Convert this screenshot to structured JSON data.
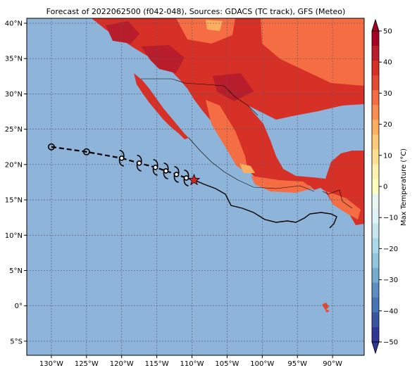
{
  "title": "Forecast of 2022062500 (f042-048), Sources: GDACS (TC track), GFS (Meteo)",
  "axes": {
    "x_ticks": [
      {
        "value": -130,
        "label": "130°W"
      },
      {
        "value": -125,
        "label": "125°W"
      },
      {
        "value": -120,
        "label": "120°W"
      },
      {
        "value": -115,
        "label": "115°W"
      },
      {
        "value": -110,
        "label": "110°W"
      },
      {
        "value": -105,
        "label": "105°W"
      },
      {
        "value": -100,
        "label": "100°W"
      },
      {
        "value": -95,
        "label": "95°W"
      },
      {
        "value": -90,
        "label": "90°W"
      }
    ],
    "y_ticks": [
      {
        "value": 40,
        "label": "40°N"
      },
      {
        "value": 35,
        "label": "35°N"
      },
      {
        "value": 30,
        "label": "30°N"
      },
      {
        "value": 25,
        "label": "25°N"
      },
      {
        "value": 20,
        "label": "20°N"
      },
      {
        "value": 15,
        "label": "15°N"
      },
      {
        "value": 10,
        "label": "10°N"
      },
      {
        "value": 5,
        "label": "5°N"
      },
      {
        "value": 0,
        "label": "0°"
      },
      {
        "value": -5,
        "label": "5°S"
      }
    ],
    "lon_range": [
      -133.5,
      -85.5
    ],
    "lat_range": [
      -7,
      40.7
    ],
    "gridlines": true
  },
  "colorbar": {
    "label": "Max Temperature (°C)",
    "range": [
      -50,
      50
    ],
    "step": 5,
    "tick_values": [
      50,
      40,
      30,
      20,
      10,
      0,
      -10,
      -20,
      -30,
      -40,
      -50
    ],
    "tick_labels": [
      "50",
      "40",
      "30",
      "20",
      "10",
      "0",
      "−10",
      "−20",
      "−30",
      "−40",
      "−50"
    ],
    "colors_top_to_bottom": [
      "#a50026",
      "#b71d2a",
      "#d73027",
      "#e34a33",
      "#f46d43",
      "#f88d52",
      "#fdae61",
      "#fdc978",
      "#fee090",
      "#fff1b0",
      "#ffffbf",
      "#e8f6f3",
      "#e0f3f8",
      "#c6e5ef",
      "#abd9e9",
      "#92c5de",
      "#74add1",
      "#5b8ec2",
      "#4575b4",
      "#3a56a0",
      "#313695"
    ]
  },
  "ocean_color": "#8fb4d9",
  "track": {
    "past_points": [
      {
        "lon": -130.0,
        "lat": 22.5
      },
      {
        "lon": -125.0,
        "lat": 21.8
      }
    ],
    "forecast_points": [
      {
        "lon": -120.0,
        "lat": 20.9
      },
      {
        "lon": -117.5,
        "lat": 20.2
      },
      {
        "lon": -115.2,
        "lat": 19.6
      },
      {
        "lon": -113.7,
        "lat": 19.1
      },
      {
        "lon": -112.2,
        "lat": 18.6
      },
      {
        "lon": -110.8,
        "lat": 18.1
      }
    ],
    "current_position": {
      "lon": -109.7,
      "lat": 17.8
    },
    "star_color": "#d62728"
  }
}
